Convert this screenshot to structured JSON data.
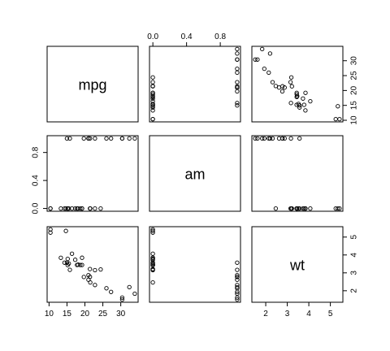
{
  "chart_data": {
    "type": "scatter",
    "variables": [
      {
        "name": "mpg",
        "ticks": [
          10,
          15,
          20,
          25,
          30
        ],
        "tick_labels": [
          "10",
          "15",
          "20",
          "25",
          "30"
        ],
        "lim": [
          10.4,
          33.9
        ]
      },
      {
        "name": "am",
        "ticks": [
          0.0,
          0.4,
          0.8
        ],
        "tick_labels": [
          "0.0",
          "0.4",
          "0.8"
        ],
        "lim": [
          0,
          1
        ]
      },
      {
        "name": "wt",
        "ticks": [
          2,
          3,
          4,
          5
        ],
        "tick_labels": [
          "2",
          "3",
          "4",
          "5"
        ],
        "lim": [
          1.513,
          5.424
        ]
      }
    ],
    "top_axis_labels": [
      "0.0",
      "0.4",
      "0.8"
    ],
    "point_style": "open-circle",
    "observations": [
      [
        21.0,
        1,
        2.62
      ],
      [
        21.0,
        1,
        2.875
      ],
      [
        22.8,
        1,
        2.32
      ],
      [
        21.4,
        0,
        3.215
      ],
      [
        18.7,
        0,
        3.44
      ],
      [
        18.1,
        0,
        3.46
      ],
      [
        14.3,
        0,
        3.57
      ],
      [
        24.4,
        0,
        3.19
      ],
      [
        22.8,
        0,
        3.15
      ],
      [
        19.2,
        0,
        3.44
      ],
      [
        17.8,
        0,
        3.44
      ],
      [
        16.4,
        0,
        4.07
      ],
      [
        17.3,
        0,
        3.73
      ],
      [
        15.2,
        0,
        3.78
      ],
      [
        10.4,
        0,
        5.25
      ],
      [
        10.4,
        0,
        5.424
      ],
      [
        14.7,
        0,
        5.345
      ],
      [
        32.4,
        1,
        2.2
      ],
      [
        30.4,
        1,
        1.615
      ],
      [
        33.9,
        1,
        1.835
      ],
      [
        21.5,
        0,
        2.465
      ],
      [
        15.5,
        0,
        3.52
      ],
      [
        15.2,
        0,
        3.435
      ],
      [
        13.3,
        0,
        3.84
      ],
      [
        19.2,
        0,
        3.845
      ],
      [
        27.3,
        1,
        1.935
      ],
      [
        26.0,
        1,
        2.14
      ],
      [
        30.4,
        1,
        1.513
      ],
      [
        15.8,
        1,
        3.17
      ],
      [
        19.7,
        1,
        2.77
      ],
      [
        15.0,
        1,
        3.57
      ],
      [
        21.4,
        1,
        2.78
      ]
    ]
  }
}
